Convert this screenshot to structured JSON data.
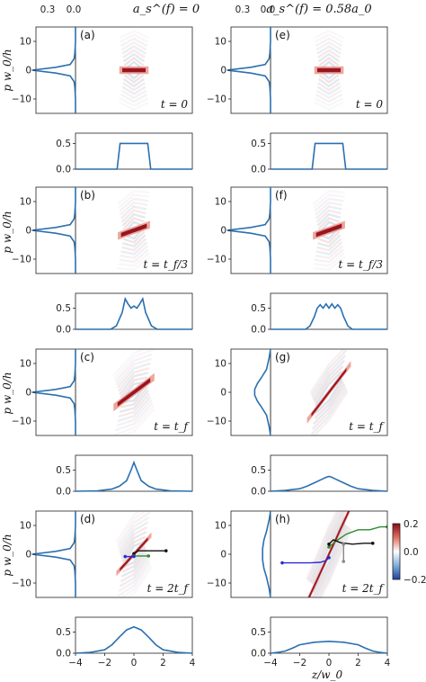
{
  "figure": {
    "column_titles": [
      "a_s^(f) = 0",
      "a_s^(f) = 0.58a_0"
    ],
    "marginal_top_ticks": [
      "0.3",
      "0.0"
    ],
    "y_axis_label": "p w_0/h",
    "x_axis_label": "z/w_0",
    "colorbar": {
      "ticks": [
        "0.2",
        "0.0",
        "−0.2"
      ],
      "range": [
        -0.2,
        0.2
      ],
      "colors": [
        "#1f3f9e",
        "#ffffff",
        "#a3121c"
      ]
    }
  },
  "chart_data": [
    {
      "type": "heatmap",
      "panel": "a",
      "time_label": "t = 0",
      "xlim": [
        -4,
        4
      ],
      "ylim": [
        -15,
        15
      ],
      "yticks": [
        -10,
        0,
        10
      ],
      "wigner": {
        "x_center": 0,
        "x_halfwidth": 1.0,
        "shear": 0,
        "p_width": 1.3,
        "fringe": "symmetric"
      },
      "momentum_marginal": {
        "type": "line",
        "xlim": [
          0.3,
          0.0
        ],
        "p": [
          -15,
          -10,
          -6,
          -4,
          -2,
          -1,
          0,
          1,
          2,
          4,
          6,
          10,
          15
        ],
        "values": [
          0,
          0,
          0.005,
          0.01,
          0.04,
          0.15,
          0.33,
          0.15,
          0.04,
          0.01,
          0.005,
          0,
          0
        ]
      },
      "density": {
        "type": "line",
        "ylim": [
          0,
          0.7
        ],
        "yticks": [
          0.0,
          0.5
        ],
        "x": [
          -4,
          -1.15,
          -0.95,
          0,
          0.95,
          1.15,
          4
        ],
        "values": [
          0,
          0,
          0.5,
          0.5,
          0.5,
          0,
          0
        ]
      }
    },
    {
      "type": "heatmap",
      "panel": "b",
      "time_label": "t = t_f/3",
      "xlim": [
        -4,
        4
      ],
      "ylim": [
        -15,
        15
      ],
      "yticks": [
        -10,
        0,
        10
      ],
      "wigner": {
        "x_center": 0,
        "x_halfwidth": 1.1,
        "shear": 0.09,
        "p_width": 1.3,
        "fringe": "symmetric"
      },
      "momentum_marginal": {
        "type": "line",
        "xlim": [
          0.3,
          0.0
        ],
        "p": [
          -15,
          -10,
          -6,
          -4,
          -2,
          -1,
          0,
          1,
          2,
          4,
          6,
          10,
          15
        ],
        "values": [
          0,
          0,
          0.005,
          0.01,
          0.04,
          0.15,
          0.33,
          0.15,
          0.04,
          0.01,
          0.005,
          0,
          0
        ]
      },
      "density": {
        "type": "line",
        "ylim": [
          0,
          0.85
        ],
        "yticks": [
          0.0,
          0.5
        ],
        "x": [
          -4,
          -1.6,
          -1.2,
          -0.8,
          -0.6,
          -0.4,
          -0.2,
          0,
          0.2,
          0.4,
          0.6,
          0.8,
          1.2,
          1.6,
          4
        ],
        "values": [
          0,
          0,
          0.08,
          0.4,
          0.72,
          0.6,
          0.5,
          0.55,
          0.5,
          0.6,
          0.72,
          0.4,
          0.08,
          0,
          0
        ]
      }
    },
    {
      "type": "heatmap",
      "panel": "c",
      "time_label": "t = t_f",
      "xlim": [
        -4,
        4
      ],
      "ylim": [
        -15,
        15
      ],
      "yticks": [
        -10,
        0,
        10
      ],
      "wigner": {
        "x_center": 0,
        "x_halfwidth": 1.4,
        "shear": 0.19,
        "p_width": 1.3,
        "fringe": "symmetric"
      },
      "momentum_marginal": {
        "type": "line",
        "xlim": [
          0.3,
          0.0
        ],
        "p": [
          -15,
          -10,
          -6,
          -4,
          -2,
          -1,
          0,
          1,
          2,
          4,
          6,
          10,
          15
        ],
        "values": [
          0,
          0,
          0.005,
          0.01,
          0.04,
          0.15,
          0.33,
          0.15,
          0.04,
          0.01,
          0.005,
          0,
          0
        ]
      },
      "density": {
        "type": "line",
        "ylim": [
          0,
          0.85
        ],
        "yticks": [
          0.0,
          0.5
        ],
        "x": [
          -4,
          -2.5,
          -1.5,
          -1,
          -0.5,
          -0.2,
          0,
          0.2,
          0.5,
          1,
          1.5,
          2.5,
          4
        ],
        "values": [
          0,
          0.01,
          0.05,
          0.12,
          0.25,
          0.5,
          0.68,
          0.5,
          0.25,
          0.12,
          0.05,
          0.01,
          0
        ]
      }
    },
    {
      "type": "heatmap",
      "panel": "d",
      "time_label": "t = 2t_f",
      "xlim": [
        -4,
        4
      ],
      "ylim": [
        -15,
        15
      ],
      "yticks": [
        -10,
        0,
        10
      ],
      "wigner": {
        "x_center": 0,
        "x_halfwidth": 1.2,
        "shear": 0.28,
        "p_width": 0.9,
        "fringe": "symmetric"
      },
      "momentum_marginal": {
        "type": "line",
        "xlim": [
          0.3,
          0.0
        ],
        "p": [
          -15,
          -10,
          -6,
          -4,
          -2,
          -1,
          0,
          1,
          2,
          4,
          6,
          10,
          15
        ],
        "values": [
          0,
          0,
          0.005,
          0.01,
          0.04,
          0.15,
          0.33,
          0.15,
          0.04,
          0.01,
          0.005,
          0,
          0
        ]
      },
      "density": {
        "type": "line",
        "ylim": [
          0,
          0.85
        ],
        "yticks": [
          0.0,
          0.5
        ],
        "x": [
          -4,
          -3,
          -2,
          -1.5,
          -1,
          -0.5,
          0,
          0.5,
          1,
          1.5,
          2,
          3,
          4
        ],
        "values": [
          0,
          0.02,
          0.08,
          0.2,
          0.38,
          0.55,
          0.62,
          0.55,
          0.38,
          0.2,
          0.08,
          0.02,
          0
        ]
      },
      "overlay_lines": [
        {
          "color": "#111111",
          "x": [
            0,
            0.3,
            2.2
          ],
          "y": [
            0.2,
            1.2,
            1.2
          ]
        },
        {
          "color": "#2e8b2e",
          "x": [
            0,
            1.0
          ],
          "y": [
            -0.6,
            -0.6
          ]
        },
        {
          "color": "#2b2bd6",
          "x": [
            -0.6,
            0
          ],
          "y": [
            -0.8,
            -0.8
          ]
        }
      ]
    },
    {
      "type": "heatmap",
      "panel": "e",
      "time_label": "t = 0",
      "xlim": [
        -4,
        4
      ],
      "ylim": [
        -15,
        15
      ],
      "yticks": [
        -10,
        0,
        10
      ],
      "wigner": {
        "x_center": 0,
        "x_halfwidth": 1.0,
        "shear": 0,
        "p_width": 1.3,
        "fringe": "symmetric"
      },
      "momentum_marginal": {
        "type": "line",
        "xlim": [
          0.3,
          0.0
        ],
        "p": [
          -15,
          -10,
          -6,
          -4,
          -2,
          -1,
          0,
          1,
          2,
          4,
          6,
          10,
          15
        ],
        "values": [
          0,
          0,
          0.005,
          0.01,
          0.04,
          0.15,
          0.33,
          0.15,
          0.04,
          0.01,
          0.005,
          0,
          0
        ]
      },
      "density": {
        "type": "line",
        "ylim": [
          0,
          0.7
        ],
        "yticks": [
          0.0,
          0.5
        ],
        "x": [
          -4,
          -1.15,
          -0.95,
          0,
          0.95,
          1.15,
          4
        ],
        "values": [
          0,
          0,
          0.5,
          0.5,
          0.5,
          0,
          0
        ]
      }
    },
    {
      "type": "heatmap",
      "panel": "f",
      "time_label": "t = t_f/3",
      "xlim": [
        -4,
        4
      ],
      "ylim": [
        -15,
        15
      ],
      "yticks": [
        -10,
        0,
        10
      ],
      "wigner": {
        "x_center": 0,
        "x_halfwidth": 1.1,
        "shear": 0.09,
        "p_width": 1.3,
        "fringe": "symmetric"
      },
      "momentum_marginal": {
        "type": "line",
        "xlim": [
          0.3,
          0.0
        ],
        "p": [
          -15,
          -10,
          -6,
          -4,
          -2,
          -1,
          0,
          1,
          2,
          4,
          6,
          10,
          15
        ],
        "values": [
          0,
          0,
          0.005,
          0.01,
          0.04,
          0.15,
          0.33,
          0.15,
          0.04,
          0.01,
          0.005,
          0,
          0
        ]
      },
      "density": {
        "type": "line",
        "ylim": [
          0,
          0.85
        ],
        "yticks": [
          0.0,
          0.5
        ],
        "x": [
          -4,
          -1.6,
          -1.3,
          -1,
          -0.8,
          -0.6,
          -0.4,
          -0.2,
          0,
          0.2,
          0.4,
          0.6,
          0.8,
          1,
          1.3,
          1.6,
          4
        ],
        "values": [
          0,
          0,
          0.08,
          0.3,
          0.5,
          0.58,
          0.5,
          0.6,
          0.5,
          0.6,
          0.5,
          0.58,
          0.5,
          0.3,
          0.08,
          0,
          0
        ]
      }
    },
    {
      "type": "heatmap",
      "panel": "g",
      "time_label": "t = t_f",
      "xlim": [
        -4,
        4
      ],
      "ylim": [
        -15,
        15
      ],
      "yticks": [
        -10,
        0,
        10
      ],
      "wigner": {
        "x_center": 0,
        "x_halfwidth": 1.5,
        "shear": 0.33,
        "p_width": 1.0,
        "fringe": "narrow"
      },
      "momentum_marginal": {
        "type": "line",
        "xlim": [
          0.3,
          0.0
        ],
        "p": [
          -15,
          -12,
          -8,
          -5,
          -3,
          -1,
          0,
          1,
          3,
          5,
          8,
          12,
          15
        ],
        "values": [
          0,
          0.01,
          0.03,
          0.07,
          0.1,
          0.12,
          0.12,
          0.12,
          0.1,
          0.07,
          0.03,
          0.01,
          0
        ]
      },
      "density": {
        "type": "line",
        "ylim": [
          0,
          0.85
        ],
        "yticks": [
          0.0,
          0.5
        ],
        "x": [
          -4,
          -3,
          -2,
          -1.5,
          -1,
          -0.5,
          -0.2,
          0,
          0.2,
          0.5,
          1,
          1.5,
          2,
          3,
          4
        ],
        "values": [
          0,
          0.02,
          0.06,
          0.12,
          0.2,
          0.28,
          0.33,
          0.35,
          0.33,
          0.28,
          0.2,
          0.12,
          0.06,
          0.02,
          0
        ]
      }
    },
    {
      "type": "heatmap",
      "panel": "h",
      "time_label": "t = 2t_f",
      "xlim": [
        -4,
        4
      ],
      "ylim": [
        -15,
        15
      ],
      "yticks": [
        -10,
        0,
        10
      ],
      "wigner": {
        "x_center": 0,
        "x_halfwidth": 1.8,
        "shear": 0.55,
        "p_width": 1.2,
        "fringe": "narrow"
      },
      "momentum_marginal": {
        "type": "line",
        "xlim": [
          0.3,
          0.0
        ],
        "p": [
          -15,
          -12,
          -8,
          -5,
          -2,
          0,
          2,
          5,
          8,
          12,
          15
        ],
        "values": [
          0,
          0.01,
          0.03,
          0.05,
          0.06,
          0.06,
          0.06,
          0.05,
          0.03,
          0.01,
          0
        ]
      },
      "density": {
        "type": "line",
        "ylim": [
          0,
          0.85
        ],
        "yticks": [
          0.0,
          0.5
        ],
        "x": [
          -4,
          -3.5,
          -3,
          -2.5,
          -2,
          -1,
          0,
          1,
          2,
          2.5,
          3,
          3.5,
          4
        ],
        "values": [
          0,
          0.02,
          0.05,
          0.12,
          0.2,
          0.26,
          0.28,
          0.26,
          0.2,
          0.12,
          0.05,
          0.02,
          0
        ]
      },
      "overlay_lines": [
        {
          "color": "#2b2bd6",
          "x": [
            -3.2,
            -1.3,
            -0.6,
            -0.2,
            0
          ],
          "y": [
            -3,
            -3,
            -2.8,
            -2.2,
            -1.2
          ]
        },
        {
          "color": "#2e8b2e",
          "x": [
            0,
            0.6,
            1.2,
            2,
            2.8,
            3.5,
            4
          ],
          "y": [
            2.5,
            5,
            7,
            8.5,
            8.5,
            9.5,
            9.5
          ]
        },
        {
          "color": "#111111",
          "x": [
            0,
            0.3,
            0.8,
            1.6,
            2.4,
            3.0
          ],
          "y": [
            3.5,
            5,
            4,
            3.5,
            3.8,
            3.8
          ]
        },
        {
          "color": "#888888",
          "x": [
            1.0,
            1.0
          ],
          "y": [
            -2.5,
            3.5
          ]
        }
      ]
    }
  ]
}
